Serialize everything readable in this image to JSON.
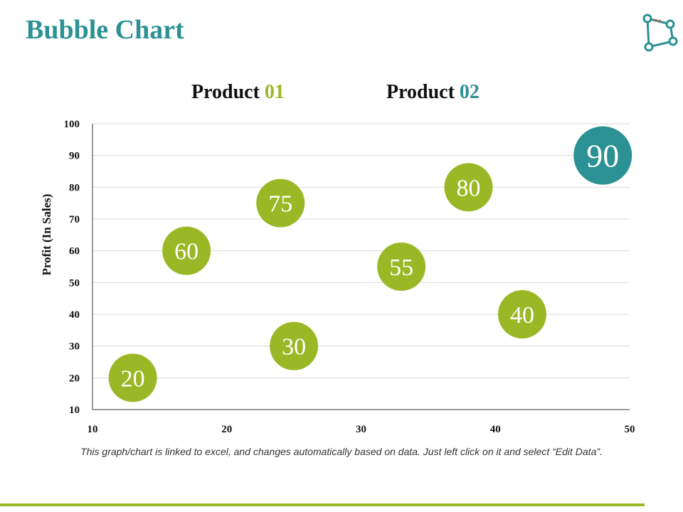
{
  "slide": {
    "title": "Bubble Chart",
    "footnote": "This graph/chart is linked to excel, and changes automatically based on data. Just left click on it and select “Edit Data”."
  },
  "legend": [
    {
      "prefix": "Product ",
      "number": "01",
      "color": "#9ab826"
    },
    {
      "prefix": "Product ",
      "number": "02",
      "color": "#2b9194"
    }
  ],
  "colors": {
    "title": "#2b9194",
    "series1": "#9ab826",
    "series2": "#2b9194",
    "grid": "#d9d9d9",
    "axis": "#333333",
    "logo_main": "#2b9194",
    "logo_accent": "#e05a4f"
  },
  "logo": {
    "icon": "polygon-nodes-icon"
  },
  "chart_data": {
    "type": "scatter",
    "title": "",
    "xlabel": "",
    "ylabel": "Profit  (In Sales)",
    "xlim": [
      10,
      50
    ],
    "ylim": [
      10,
      100
    ],
    "xticks": [
      10,
      20,
      30,
      40,
      50
    ],
    "yticks": [
      10,
      20,
      30,
      40,
      50,
      60,
      70,
      80,
      90,
      100
    ],
    "grid": true,
    "legend_position": "top",
    "series": [
      {
        "name": "Product 01",
        "color": "#9ab826",
        "points": [
          {
            "x": 13,
            "y": 20,
            "label": "20"
          },
          {
            "x": 17,
            "y": 60,
            "label": "60"
          },
          {
            "x": 24,
            "y": 75,
            "label": "75"
          },
          {
            "x": 25,
            "y": 30,
            "label": "30"
          },
          {
            "x": 33,
            "y": 55,
            "label": "55"
          },
          {
            "x": 38,
            "y": 80,
            "label": "80"
          },
          {
            "x": 42,
            "y": 40,
            "label": "40"
          }
        ]
      },
      {
        "name": "Product 02",
        "color": "#2b9194",
        "points": [
          {
            "x": 48,
            "y": 90,
            "label": "90"
          }
        ]
      }
    ]
  }
}
